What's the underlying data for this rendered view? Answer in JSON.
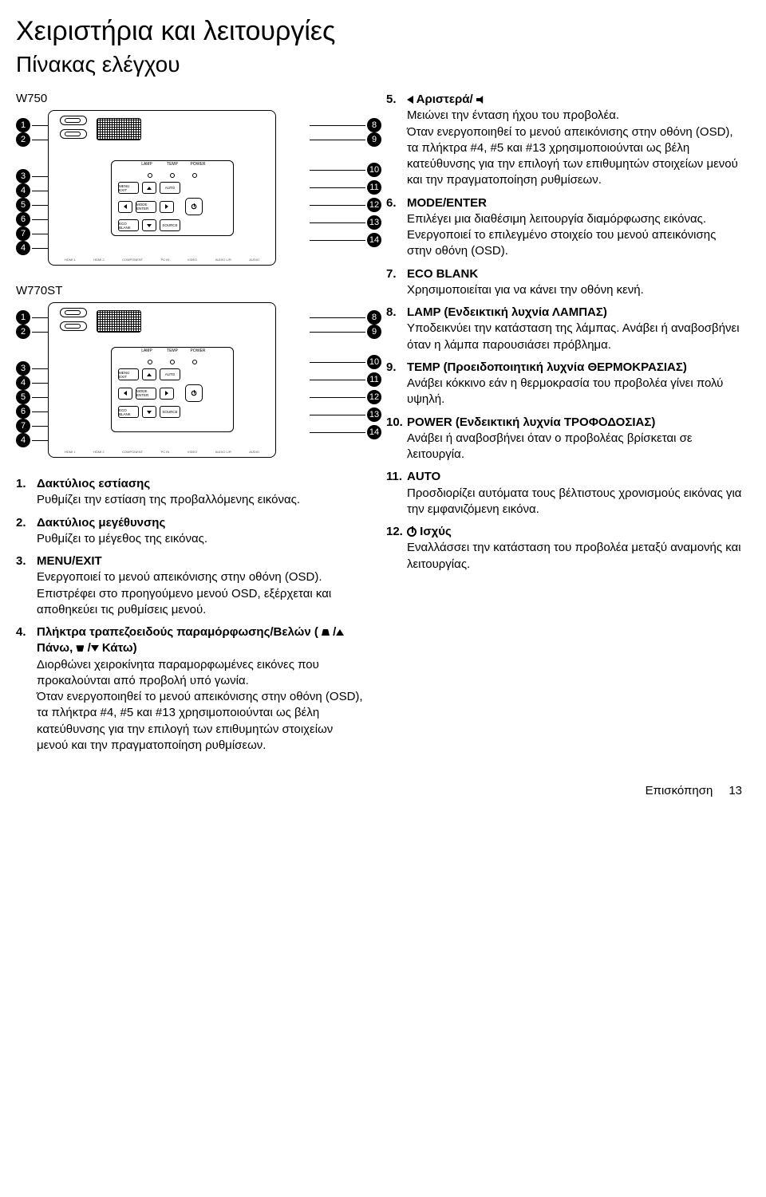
{
  "page": {
    "title": "Χειριστήρια και λειτουργίες",
    "subtitle": "Πίνακας ελέγχου",
    "footer_section": "Επισκόπηση",
    "footer_page": "13"
  },
  "models": {
    "m1": "W750",
    "m2": "W770ST"
  },
  "panel_labels": {
    "lamp": "LAMP",
    "temp": "TEMP",
    "power": "POWER",
    "menu": "MENU EXIT",
    "auto": "AUTO",
    "mode": "MODE ENTER",
    "eco": "ECO BLANK",
    "source": "SOURCE"
  },
  "ports": [
    "HDMI 1",
    "HDMI 2",
    "COMPONENT",
    "PC IN",
    "VIDEO",
    "AUDIO L/R",
    "AUDIO"
  ],
  "callouts_left": [
    "1",
    "2",
    "3",
    "4",
    "5",
    "6",
    "7",
    "4"
  ],
  "callouts_right": [
    "8",
    "9",
    "10",
    "11",
    "12",
    "13",
    "14"
  ],
  "left_items": [
    {
      "num": "1.",
      "term": "Δακτύλιος εστίασης",
      "desc": "Ρυθμίζει την εστίαση της προβαλλόμενης εικόνας."
    },
    {
      "num": "2.",
      "term": "Δακτύλιος μεγέθυνσης",
      "desc": "Ρυθμίζει το μέγεθος της εικόνας."
    },
    {
      "num": "3.",
      "term": "MENU/EXIT",
      "desc": "Ενεργοποιεί το μενού απεικόνισης στην οθόνη (OSD). Επιστρέφει στο προηγούμενο μενού OSD, εξέρχεται και αποθηκεύει τις ρυθμίσεις μενού."
    },
    {
      "num": "4.",
      "term": "Πλήκτρα τραπεζοειδούς παραμόρφωσης/Βελών ( ",
      "term_tail": " Κάτω)",
      "term_mid_a": "Πάνω, ",
      "desc": "Διορθώνει χειροκίνητα παραμορφωμένες εικόνες που προκαλούνται από προβολή υπό γωνία.",
      "desc2": "Όταν ενεργοποιηθεί το μενού απεικόνισης στην οθόνη (OSD), τα πλήκτρα #4, #5 και #13 χρησιμοποιούνται ως βέλη κατεύθυνσης για την επιλογή των επιθυμητών στοιχείων μενού και την πραγματοποίηση ρυθμίσεων."
    }
  ],
  "right_items": [
    {
      "num": "5.",
      "term": " Αριστερά/ ",
      "has_left_tri": true,
      "has_vol": true,
      "desc": "Μειώνει την ένταση ήχου του προβολέα.",
      "desc2": "Όταν ενεργοποιηθεί το μενού απεικόνισης στην οθόνη (OSD), τα πλήκτρα #4, #5 και #13 χρησιμοποιούνται ως βέλη κατεύθυνσης για την επιλογή των επιθυμητών στοιχείων μενού και την πραγματοποίηση ρυθμίσεων."
    },
    {
      "num": "6.",
      "term": "MODE/ENTER",
      "desc": "Επιλέγει μια διαθέσιμη λειτουργία διαμόρφωσης εικόνας.",
      "desc2": "Ενεργοποιεί το επιλεγμένο στοιχείο του μενού απεικόνισης στην οθόνη (OSD)."
    },
    {
      "num": "7.",
      "term": "ECO BLANK",
      "desc": "Χρησιμοποιείται για να κάνει την οθόνη κενή."
    },
    {
      "num": "8.",
      "term": "LAMP (Ενδεικτική λυχνία ΛΑΜΠΑΣ)",
      "desc": "Υποδεικνύει την κατάσταση της λάμπας. Ανάβει ή αναβοσβήνει όταν η λάμπα παρουσιάσει πρόβλημα."
    },
    {
      "num": "9.",
      "term": "TEMP (Προειδοποιητική λυχνία ΘΕΡΜΟΚΡΑΣΙΑΣ)",
      "desc": "Ανάβει κόκκινο εάν η θερμοκρασία του προβολέα γίνει πολύ υψηλή."
    },
    {
      "num": "10.",
      "term": "POWER (Ενδεικτική λυχνία ΤΡΟΦΟΔΟΣΙΑΣ)",
      "desc": "Ανάβει ή αναβοσβήνει όταν ο προβολέας βρίσκεται σε λειτουργία."
    },
    {
      "num": "11.",
      "term": "AUTO",
      "desc": "Προσδιορίζει αυτόματα τους βέλτιστους χρονισμούς εικόνας για την εμφανιζόμενη εικόνα."
    },
    {
      "num": "12.",
      "term": " Ισχύς",
      "has_power": true,
      "desc": "Εναλλάσσει την κατάσταση του προβολέα μεταξύ αναμονής και λειτουργίας."
    }
  ]
}
